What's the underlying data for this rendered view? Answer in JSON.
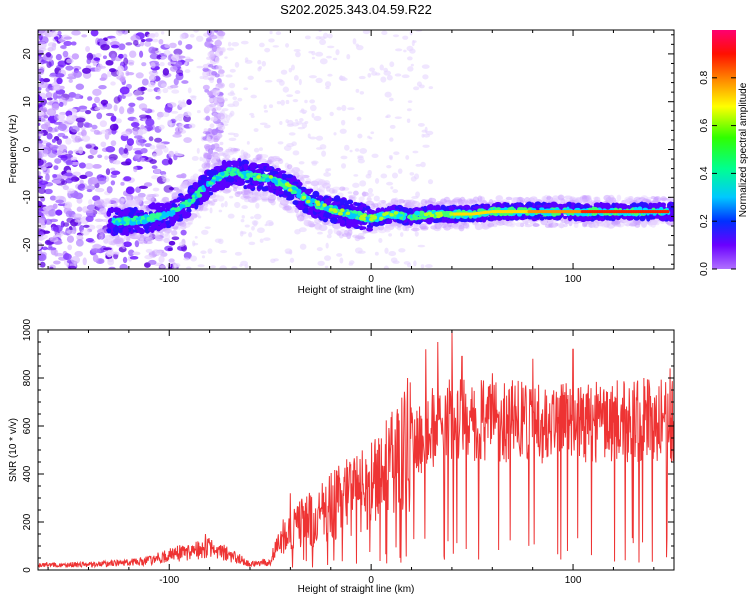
{
  "title": "S202.2025.343.04.59.R22",
  "chart_data": [
    {
      "type": "heatmap",
      "name": "spectrogram",
      "xlabel": "Height of straight line (km)",
      "ylabel": "Frequency (Hz)",
      "xlim": [
        -165,
        150
      ],
      "ylim": [
        -25,
        25
      ],
      "xticks": [
        -100,
        0,
        100
      ],
      "yticks": [
        -20,
        -10,
        0,
        10,
        20
      ],
      "colorbar": {
        "label": "Normalized spectral amplitude",
        "range": [
          0,
          1
        ],
        "ticks": [
          "0.0",
          "0.2",
          "0.4",
          "0.6",
          "0.8"
        ]
      },
      "trace_frequency_hz": [
        {
          "x": -120,
          "y": -15
        },
        {
          "x": -110,
          "y": -14.5
        },
        {
          "x": -100,
          "y": -13.5
        },
        {
          "x": -90,
          "y": -11
        },
        {
          "x": -80,
          "y": -7
        },
        {
          "x": -70,
          "y": -4.5
        },
        {
          "x": -60,
          "y": -5.5
        },
        {
          "x": -50,
          "y": -6
        },
        {
          "x": -40,
          "y": -8
        },
        {
          "x": -30,
          "y": -11
        },
        {
          "x": -20,
          "y": -12.5
        },
        {
          "x": -10,
          "y": -13.5
        },
        {
          "x": 0,
          "y": -14.5
        },
        {
          "x": 10,
          "y": -13.5
        },
        {
          "x": 20,
          "y": -14
        },
        {
          "x": 30,
          "y": -13.5
        },
        {
          "x": 40,
          "y": -13.5
        },
        {
          "x": 50,
          "y": -13.5
        },
        {
          "x": 60,
          "y": -13
        },
        {
          "x": 80,
          "y": -13
        },
        {
          "x": 100,
          "y": -13
        },
        {
          "x": 120,
          "y": -13
        },
        {
          "x": 148,
          "y": -13
        }
      ]
    },
    {
      "type": "line",
      "name": "snr",
      "xlabel": "Height of straight line (km)",
      "ylabel": "SNR (10 * v/v)",
      "xlim": [
        -165,
        150
      ],
      "ylim": [
        0,
        1000
      ],
      "xticks": [
        -100,
        0,
        100
      ],
      "yticks": [
        0,
        200,
        400,
        600,
        800,
        1000
      ],
      "color": "#ee3333",
      "envelope": [
        {
          "x": -165,
          "y": 20
        },
        {
          "x": -130,
          "y": 25
        },
        {
          "x": -110,
          "y": 40
        },
        {
          "x": -95,
          "y": 70
        },
        {
          "x": -82,
          "y": 95
        },
        {
          "x": -72,
          "y": 70
        },
        {
          "x": -60,
          "y": 25
        },
        {
          "x": -50,
          "y": 35
        },
        {
          "x": -45,
          "y": 130
        },
        {
          "x": -35,
          "y": 190
        },
        {
          "x": -25,
          "y": 230
        },
        {
          "x": -15,
          "y": 290
        },
        {
          "x": -5,
          "y": 330
        },
        {
          "x": 5,
          "y": 380
        },
        {
          "x": 15,
          "y": 470
        },
        {
          "x": 25,
          "y": 560
        },
        {
          "x": 35,
          "y": 620
        },
        {
          "x": 45,
          "y": 640
        },
        {
          "x": 55,
          "y": 620
        },
        {
          "x": 70,
          "y": 620
        },
        {
          "x": 90,
          "y": 610
        },
        {
          "x": 110,
          "y": 620
        },
        {
          "x": 130,
          "y": 625
        },
        {
          "x": 150,
          "y": 620
        }
      ],
      "peaks": [
        {
          "x": -82,
          "y": 150
        },
        {
          "x": -40,
          "y": 320
        },
        {
          "x": 18,
          "y": 800
        },
        {
          "x": 27,
          "y": 920
        },
        {
          "x": 33,
          "y": 950
        },
        {
          "x": 40,
          "y": 1000
        },
        {
          "x": 45,
          "y": 890
        },
        {
          "x": 60,
          "y": 820
        },
        {
          "x": 80,
          "y": 880
        },
        {
          "x": 100,
          "y": 920
        },
        {
          "x": 135,
          "y": 800
        },
        {
          "x": 148,
          "y": 840
        }
      ]
    }
  ]
}
